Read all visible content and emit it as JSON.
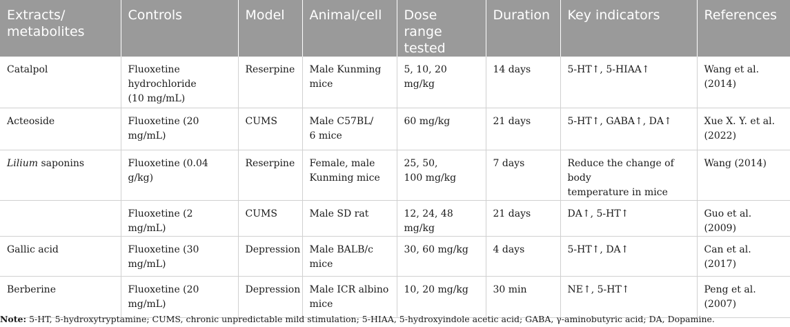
{
  "table": {
    "headers": [
      "Extracts/\nmetabolites",
      "Controls",
      "Model",
      "Animal/cell",
      "Dose\nrange\ntested",
      "Duration",
      "Key indicators",
      "References"
    ],
    "rows": [
      {
        "extract": "Catalpol",
        "extract_italic": "",
        "controls": "Fluoxetine\nhydrochloride\n(10 mg/mL)",
        "model": "Reserpine",
        "animal": "Male Kunming\nmice",
        "dose": "5, 10, 20 mg/kg",
        "duration": "14 days",
        "indicators": "5-HT↑, 5-HIAA↑",
        "reference": "Wang et al. (2014)"
      },
      {
        "extract": "Acteoside",
        "extract_italic": "",
        "controls": "Fluoxetine (20 mg/mL)",
        "model": "CUMS",
        "animal": "Male C57BL/\n6 mice",
        "dose": "60 mg/kg",
        "duration": "21 days",
        "indicators": "5-HT↑, GABA↑, DA↑",
        "reference": "Xue X. Y. et al.\n(2022)"
      },
      {
        "extract": " saponins",
        "extract_italic": "Lilium",
        "controls": "Fluoxetine (0.04 g/kg)",
        "model": "Reserpine",
        "animal": "Female, male\nKunming mice",
        "dose": "25, 50,\n100 mg/kg",
        "duration": "7 days",
        "indicators": "Reduce the change of body\ntemperature in mice",
        "reference": "Wang (2014)"
      },
      {
        "extract": "",
        "extract_italic": "",
        "controls": "Fluoxetine (2 mg/mL)",
        "model": "CUMS",
        "animal": "Male SD rat",
        "dose": "12, 24, 48 mg/kg",
        "duration": "21 days",
        "indicators": "DA↑, 5-HT↑",
        "reference": "Guo et al. (2009)"
      },
      {
        "extract": "Gallic acid",
        "extract_italic": "",
        "controls": "Fluoxetine (30 mg/mL)",
        "model": "Depression",
        "animal": "Male BALB/c\nmice",
        "dose": "30, 60 mg/kg",
        "duration": "4 days",
        "indicators": "5-HT↑, DA↑",
        "reference": "Can et al. (2017)"
      },
      {
        "extract": "Berberine",
        "extract_italic": "",
        "controls": "Fluoxetine (20 mg/mL)",
        "model": "Depression",
        "animal": "Male ICR albino\nmice",
        "dose": "10, 20 mg/kg",
        "duration": "30 min",
        "indicators": "NE↑, 5-HT↑",
        "reference": "Peng et al. (2007)"
      }
    ]
  },
  "note": {
    "label": "Note:",
    "text": " 5-HT, 5-hydroxytryptamine; CUMS, chronic unpredictable mild stimulation; 5-HIAA, 5-hydroxyindole acetic acid; GABA, γ-aminobutyric acid; DA, Dopamine."
  }
}
